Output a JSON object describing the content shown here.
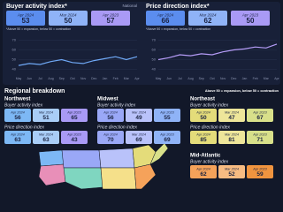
{
  "chart_data": [
    {
      "type": "line",
      "title": "Buyer activity index*",
      "badge": "National",
      "stats": [
        {
          "label": "Apr 2024",
          "value": 53
        },
        {
          "label": "Mar 2024",
          "value": 50
        },
        {
          "label": "Apr 2023",
          "value": 57
        }
      ],
      "stat_colors": [
        "#5b8def",
        "#8fb3f7",
        "#a99af5"
      ],
      "note": "*Above 50 = expansion, below 50 = contraction",
      "categories": [
        "May",
        "Jun",
        "Jul",
        "Aug",
        "Sep",
        "Oct",
        "Nov",
        "Dec",
        "Jan",
        "Feb",
        "Mar",
        "Apr"
      ],
      "values": [
        44,
        46,
        45,
        48,
        50,
        47,
        46,
        49,
        51,
        53,
        50,
        53
      ],
      "color": "#6fa8f5",
      "ylim": [
        35,
        75
      ],
      "yticks": [
        40,
        50,
        60,
        70
      ],
      "grid": true
    },
    {
      "type": "line",
      "title": "Price direction index*",
      "stats": [
        {
          "label": "Apr 2024",
          "value": 66
        },
        {
          "label": "Mar 2024",
          "value": 62
        },
        {
          "label": "Apr 2023",
          "value": 50
        }
      ],
      "stat_colors": [
        "#5b8def",
        "#8fb3f7",
        "#a99af5"
      ],
      "note": "*Above 50 = expansion, below 50 = contraction",
      "categories": [
        "May",
        "Jun",
        "Jul",
        "Aug",
        "Sep",
        "Oct",
        "Nov",
        "Dec",
        "Jan",
        "Feb",
        "Mar",
        "Apr"
      ],
      "values": [
        50,
        52,
        55,
        54,
        56,
        55,
        58,
        60,
        61,
        63,
        62,
        66
      ],
      "color": "#b59cf7",
      "ylim": [
        35,
        75
      ],
      "yticks": [
        40,
        50,
        60,
        70
      ],
      "grid": true
    }
  ],
  "regional": {
    "title": "Regional breakdown",
    "note": "Above 50 = expansion, below 50 = contraction",
    "regions": [
      {
        "name": "Northwest",
        "colors": [
          "#7db8f5",
          "#a9cdf7",
          "#a99af5"
        ],
        "indices": [
          {
            "title": "Buyer activity index",
            "stats": [
              {
                "label": "Apr 2024",
                "value": 56
              },
              {
                "label": "Mar 2024",
                "value": 51
              },
              {
                "label": "Apr 2023",
                "value": 65
              }
            ]
          },
          {
            "title": "Price direction index",
            "stats": [
              {
                "label": "Apr 2024",
                "value": 63
              },
              {
                "label": "Mar 2024",
                "value": 63
              },
              {
                "label": "Apr 2023",
                "value": 43
              }
            ]
          }
        ]
      },
      {
        "name": "Midwest",
        "colors": [
          "#9aa8f7",
          "#b9c2fa",
          "#8fb3f7"
        ],
        "indices": [
          {
            "title": "Buyer activity index",
            "stats": [
              {
                "label": "Apr 2024",
                "value": 56
              },
              {
                "label": "Mar 2024",
                "value": 49
              },
              {
                "label": "Apr 2023",
                "value": 55
              }
            ]
          },
          {
            "title": "Price direction index",
            "stats": [
              {
                "label": "Apr 2024",
                "value": 70
              },
              {
                "label": "Mar 2024",
                "value": 69
              },
              {
                "label": "Apr 2023",
                "value": 69
              }
            ]
          }
        ]
      },
      {
        "name": "Northeast",
        "colors": [
          "#e4dc7a",
          "#eee69a",
          "#d8e08a"
        ],
        "indices": [
          {
            "title": "Buyer activity index",
            "stats": [
              {
                "label": "Apr 2024",
                "value": 50
              },
              {
                "label": "Mar 2024",
                "value": 47
              },
              {
                "label": "Apr 2023",
                "value": 67
              }
            ]
          },
          {
            "title": "Price direction index",
            "stats": [
              {
                "label": "Apr 2024",
                "value": 85
              },
              {
                "label": "Mar 2024",
                "value": 81
              },
              {
                "label": "Apr 2023",
                "value": 71
              }
            ]
          }
        ]
      },
      {
        "name": "Mid-Atlantic",
        "colors": [
          "#f5a25a",
          "#f7bb82",
          "#f0943f"
        ],
        "indices": [
          {
            "title": "Buyer activity index",
            "stats": [
              {
                "label": "Apr 2024",
                "value": 62
              },
              {
                "label": "Mar 2024",
                "value": 52
              },
              {
                "label": "Apr 2023",
                "value": 59
              }
            ]
          }
        ]
      }
    ]
  }
}
